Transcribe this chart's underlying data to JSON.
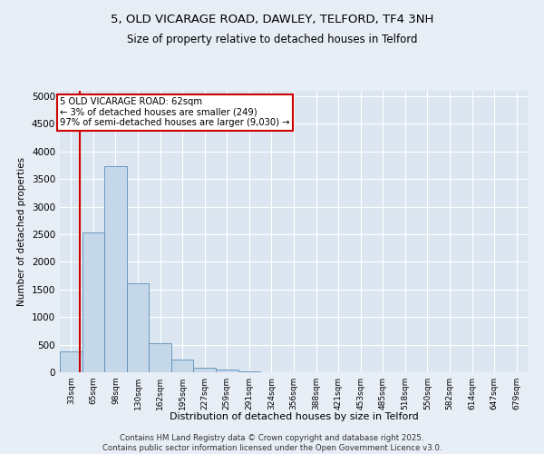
{
  "title_line1": "5, OLD VICARAGE ROAD, DAWLEY, TELFORD, TF4 3NH",
  "title_line2": "Size of property relative to detached houses in Telford",
  "xlabel": "Distribution of detached houses by size in Telford",
  "ylabel": "Number of detached properties",
  "categories": [
    "33sqm",
    "65sqm",
    "98sqm",
    "130sqm",
    "162sqm",
    "195sqm",
    "227sqm",
    "259sqm",
    "291sqm",
    "324sqm",
    "356sqm",
    "388sqm",
    "421sqm",
    "453sqm",
    "485sqm",
    "518sqm",
    "550sqm",
    "582sqm",
    "614sqm",
    "647sqm",
    "679sqm"
  ],
  "values": [
    380,
    2530,
    3730,
    1620,
    530,
    230,
    80,
    45,
    20,
    5,
    0,
    0,
    0,
    0,
    0,
    0,
    0,
    0,
    0,
    0,
    0
  ],
  "bar_color": "#c5d8ea",
  "bar_edge_color": "#5b8db8",
  "bar_edge_width": 0.6,
  "property_line_color": "#cc0000",
  "annotation_text": "5 OLD VICARAGE ROAD: 62sqm\n← 3% of detached houses are smaller (249)\n97% of semi-detached houses are larger (9,030) →",
  "annotation_box_color": "#ffffff",
  "annotation_box_edge_color": "#cc0000",
  "annotation_fontsize": 7.2,
  "ylim": [
    0,
    5100
  ],
  "yticks": [
    0,
    500,
    1000,
    1500,
    2000,
    2500,
    3000,
    3500,
    4000,
    4500,
    5000
  ],
  "background_color": "#e8eef5",
  "plot_background_color": "#dce6f0",
  "grid_color": "#ffffff",
  "title_fontsize": 9.5,
  "subtitle_fontsize": 8.5,
  "footer_text": "Contains HM Land Registry data © Crown copyright and database right 2025.\nContains public sector information licensed under the Open Government Licence v3.0.",
  "footer_fontsize": 6.2
}
